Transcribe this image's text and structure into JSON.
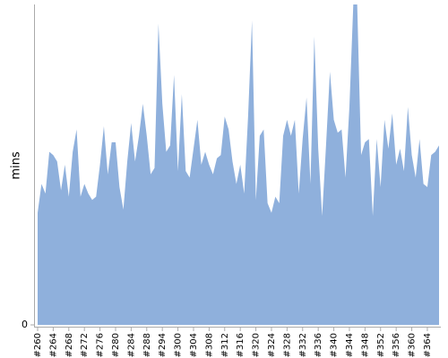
{
  "chart_data": {
    "type": "area",
    "y_label": "mins",
    "categories": [
      "#260",
      null,
      null,
      null,
      "#264",
      null,
      null,
      null,
      "#268",
      null,
      null,
      null,
      "#272",
      null,
      null,
      null,
      "#276",
      null,
      null,
      null,
      "#280",
      null,
      null,
      null,
      "#284",
      null,
      null,
      null,
      "#288",
      null,
      null,
      null,
      "#294",
      null,
      null,
      null,
      "#300",
      null,
      null,
      null,
      "#304",
      null,
      null,
      null,
      "#308",
      null,
      null,
      null,
      "#312",
      null,
      null,
      null,
      "#316",
      null,
      null,
      null,
      "#320",
      null,
      null,
      null,
      "#324",
      null,
      null,
      null,
      "#328",
      null,
      null,
      null,
      "#332",
      null,
      null,
      null,
      "#336",
      null,
      null,
      null,
      "#340",
      null,
      null,
      null,
      "#344",
      null,
      null,
      null,
      "#348",
      null,
      null,
      null,
      "#352",
      null,
      null,
      null,
      "#356",
      null,
      null,
      null,
      "#360",
      null,
      null,
      null,
      "#364",
      null,
      null,
      null
    ],
    "values": [
      35,
      44,
      41,
      54,
      53,
      51,
      42,
      50,
      40,
      54,
      61,
      40,
      44,
      41,
      39,
      40,
      50,
      62,
      47,
      57,
      57,
      43,
      36,
      51,
      63,
      51,
      59,
      69,
      59,
      47,
      49,
      94,
      69,
      54,
      56,
      78,
      48,
      72,
      48,
      46,
      55,
      64,
      50,
      54,
      50,
      47,
      52,
      53,
      65,
      61,
      51,
      44,
      50,
      41,
      65,
      95,
      39,
      59,
      61,
      38,
      35,
      40,
      38,
      59,
      64,
      59,
      64,
      41,
      58,
      71,
      44,
      90,
      55,
      34,
      56,
      79,
      64,
      60,
      61,
      46,
      68,
      100,
      100,
      53,
      57,
      58,
      34,
      58,
      43,
      64,
      55,
      66,
      50,
      55,
      48,
      68,
      53,
      46,
      58,
      44,
      43,
      53,
      54,
      56
    ],
    "color": "#8fb0dc",
    "ylim": [
      0,
      100
    ],
    "yticks": [
      0
    ],
    "grid": false
  }
}
